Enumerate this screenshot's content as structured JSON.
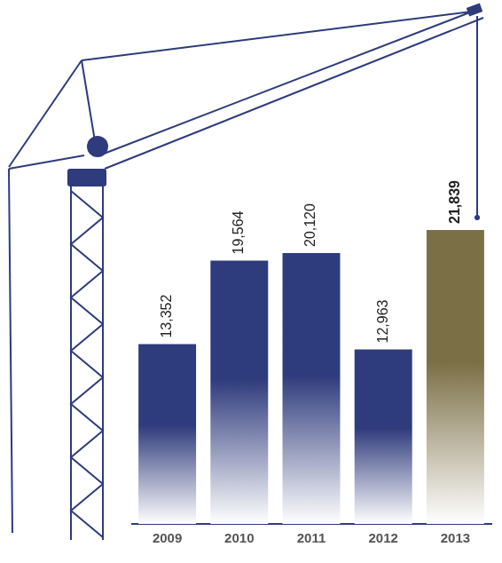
{
  "chart_data": {
    "type": "bar",
    "categories": [
      "2009",
      "2010",
      "2011",
      "2012",
      "2013"
    ],
    "values": [
      13352,
      19564,
      20120,
      12963,
      21839
    ],
    "value_labels": [
      "13,352",
      "19,564",
      "20,120",
      "12,963",
      "21,839"
    ],
    "colors": [
      "#2e3b7c",
      "#2e3b7c",
      "#2e3b7c",
      "#2e3b7c",
      "#7b6f45"
    ],
    "ylim": [
      0,
      38000
    ],
    "data_labels": true,
    "tick_labels": "x",
    "grid": false
  }
}
